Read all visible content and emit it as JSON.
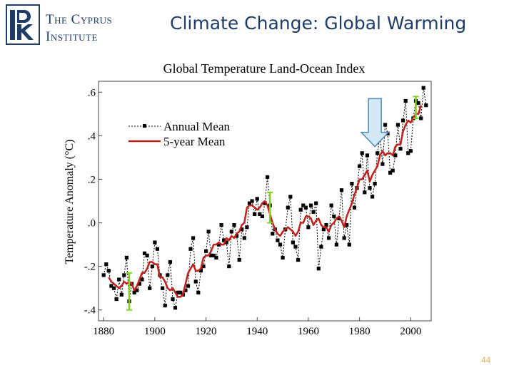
{
  "header": {
    "logo_line1": "The Cyprus",
    "logo_line2": "Institute",
    "slide_title": "Climate Change: Global Warming"
  },
  "page_number": "44",
  "colors": {
    "title": "#1f3c66",
    "logo": "#1f3c66",
    "annual": "#000000",
    "five_year": "#c0201c",
    "error_bar": "#7ed321",
    "arrow_fill": "#d4e9f6",
    "arrow_stroke": "#4f86b6",
    "page_number": "#e4b15c"
  },
  "icons": [
    "logo-emblem-icon",
    "down-arrow-icon",
    "error-bar-icon"
  ],
  "chart_data": {
    "type": "line",
    "title": "Global Temperature Land-Ocean Index",
    "ylabel": "Temperature Anomaly (°C)",
    "xlabel": "",
    "xlim": [
      1878,
      2008
    ],
    "ylim": [
      -0.45,
      0.65
    ],
    "xticks": [
      "1880",
      "1900",
      "1920",
      "1940",
      "1960",
      "1980",
      "2000"
    ],
    "xtick_values": [
      1880,
      1900,
      1920,
      1940,
      1960,
      1980,
      2000
    ],
    "yticks": [
      ".6",
      ".4",
      ".2",
      ".0",
      "-.2",
      "-.4"
    ],
    "ytick_values": [
      0.6,
      0.4,
      0.2,
      0.0,
      -0.2,
      -0.4
    ],
    "grid": false,
    "legend_position": "top-left",
    "series": [
      {
        "name": "Annual Mean",
        "style": "dotted line with square markers",
        "x": [
          1880,
          1881,
          1882,
          1883,
          1884,
          1885,
          1886,
          1887,
          1888,
          1889,
          1890,
          1891,
          1892,
          1893,
          1894,
          1895,
          1896,
          1897,
          1898,
          1899,
          1900,
          1901,
          1902,
          1903,
          1904,
          1905,
          1906,
          1907,
          1908,
          1909,
          1910,
          1911,
          1912,
          1913,
          1914,
          1915,
          1916,
          1917,
          1918,
          1919,
          1920,
          1921,
          1922,
          1923,
          1924,
          1925,
          1926,
          1927,
          1928,
          1929,
          1930,
          1931,
          1932,
          1933,
          1934,
          1935,
          1936,
          1937,
          1938,
          1939,
          1940,
          1941,
          1942,
          1943,
          1944,
          1945,
          1946,
          1947,
          1948,
          1949,
          1950,
          1951,
          1952,
          1953,
          1954,
          1955,
          1956,
          1957,
          1958,
          1959,
          1960,
          1961,
          1962,
          1963,
          1964,
          1965,
          1966,
          1967,
          1968,
          1969,
          1970,
          1971,
          1972,
          1973,
          1974,
          1975,
          1976,
          1977,
          1978,
          1979,
          1980,
          1981,
          1982,
          1983,
          1984,
          1985,
          1986,
          1987,
          1988,
          1989,
          1990,
          1991,
          1992,
          1993,
          1994,
          1995,
          1996,
          1997,
          1998,
          1999,
          2000,
          2001,
          2002,
          2003,
          2004,
          2005,
          2006
        ],
        "values": [
          -0.24,
          -0.19,
          -0.22,
          -0.29,
          -0.3,
          -0.35,
          -0.26,
          -0.33,
          -0.24,
          -0.16,
          -0.36,
          -0.28,
          -0.32,
          -0.31,
          -0.28,
          -0.26,
          -0.14,
          -0.15,
          -0.3,
          -0.2,
          -0.09,
          -0.12,
          -0.24,
          -0.3,
          -0.38,
          -0.24,
          -0.18,
          -0.35,
          -0.39,
          -0.32,
          -0.32,
          -0.33,
          -0.31,
          -0.29,
          -0.12,
          -0.07,
          -0.27,
          -0.32,
          -0.22,
          -0.2,
          -0.13,
          -0.04,
          -0.15,
          -0.15,
          -0.16,
          -0.1,
          -0.01,
          -0.08,
          -0.09,
          -0.2,
          -0.04,
          -0.01,
          -0.06,
          -0.17,
          -0.03,
          -0.07,
          -0.02,
          0.09,
          0.1,
          0.04,
          0.11,
          0.04,
          0.03,
          0.09,
          0.21,
          0.08,
          -0.05,
          -0.03,
          -0.08,
          -0.1,
          -0.16,
          -0.03,
          0.07,
          0.12,
          -0.09,
          -0.11,
          -0.17,
          0.06,
          0.08,
          0.07,
          -0.02,
          0.08,
          0.05,
          0.09,
          -0.21,
          -0.11,
          -0.03,
          -0.01,
          -0.07,
          0.08,
          0.03,
          -0.1,
          0.02,
          0.15,
          -0.07,
          -0.01,
          -0.1,
          0.18,
          0.07,
          0.16,
          0.26,
          0.32,
          0.14,
          0.31,
          0.16,
          0.12,
          0.18,
          0.32,
          0.4,
          0.27,
          0.45,
          0.41,
          0.23,
          0.24,
          0.31,
          0.45,
          0.34,
          0.47,
          0.56,
          0.32,
          0.33,
          0.48,
          0.56,
          0.55,
          0.48,
          0.62,
          0.54
        ]
      },
      {
        "name": "5-year Mean",
        "style": "solid red line",
        "x": [
          1882,
          1883,
          1884,
          1885,
          1886,
          1887,
          1888,
          1889,
          1890,
          1891,
          1892,
          1893,
          1894,
          1895,
          1896,
          1897,
          1898,
          1899,
          1900,
          1901,
          1902,
          1903,
          1904,
          1905,
          1906,
          1907,
          1908,
          1909,
          1910,
          1911,
          1912,
          1913,
          1914,
          1915,
          1916,
          1917,
          1918,
          1919,
          1920,
          1921,
          1922,
          1923,
          1924,
          1925,
          1926,
          1927,
          1928,
          1929,
          1930,
          1931,
          1932,
          1933,
          1934,
          1935,
          1936,
          1937,
          1938,
          1939,
          1940,
          1941,
          1942,
          1943,
          1944,
          1945,
          1946,
          1947,
          1948,
          1949,
          1950,
          1951,
          1952,
          1953,
          1954,
          1955,
          1956,
          1957,
          1958,
          1959,
          1960,
          1961,
          1962,
          1963,
          1964,
          1965,
          1966,
          1967,
          1968,
          1969,
          1970,
          1971,
          1972,
          1973,
          1974,
          1975,
          1976,
          1977,
          1978,
          1979,
          1980,
          1981,
          1982,
          1983,
          1984,
          1985,
          1986,
          1987,
          1988,
          1989,
          1990,
          1991,
          1992,
          1993,
          1994,
          1995,
          1996,
          1997,
          1998,
          1999,
          2000,
          2001,
          2002,
          2003,
          2004
        ],
        "values": [
          -0.25,
          -0.27,
          -0.28,
          -0.29,
          -0.3,
          -0.29,
          -0.27,
          -0.28,
          -0.27,
          -0.28,
          -0.31,
          -0.29,
          -0.26,
          -0.23,
          -0.23,
          -0.21,
          -0.18,
          -0.18,
          -0.19,
          -0.19,
          -0.25,
          -0.25,
          -0.27,
          -0.3,
          -0.31,
          -0.3,
          -0.32,
          -0.34,
          -0.34,
          -0.33,
          -0.28,
          -0.23,
          -0.21,
          -0.19,
          -0.22,
          -0.22,
          -0.21,
          -0.16,
          -0.15,
          -0.15,
          -0.13,
          -0.1,
          -0.1,
          -0.09,
          -0.1,
          -0.1,
          -0.07,
          -0.08,
          -0.06,
          -0.07,
          -0.05,
          -0.04,
          -0.01,
          0.0,
          0.07,
          0.08,
          0.08,
          0.07,
          0.06,
          0.07,
          0.09,
          0.1,
          0.08,
          0.04,
          0.0,
          -0.03,
          -0.05,
          -0.06,
          -0.04,
          -0.03,
          -0.02,
          -0.03,
          -0.04,
          -0.06,
          -0.04,
          0.0,
          0.0,
          0.03,
          0.03,
          0.02,
          -0.01,
          0.01,
          0.02,
          -0.01,
          -0.02,
          -0.02,
          -0.04,
          -0.01,
          0.0,
          0.02,
          0.03,
          0.01,
          -0.02,
          0.03,
          0.06,
          0.09,
          0.13,
          0.16,
          0.2,
          0.2,
          0.22,
          0.24,
          0.19,
          0.22,
          0.24,
          0.26,
          0.31,
          0.33,
          0.31,
          0.32,
          0.32,
          0.31,
          0.35,
          0.36,
          0.36,
          0.42,
          0.45,
          0.47,
          0.46,
          0.48,
          0.5,
          0.5,
          0.54
        ]
      }
    ],
    "annotations": {
      "error_bars": [
        {
          "x": 1890,
          "low": -0.4,
          "high": -0.23
        },
        {
          "x": 1945,
          "low": 0.0,
          "high": 0.14
        },
        {
          "x": 2002,
          "low": 0.48,
          "high": 0.58
        }
      ],
      "arrow": {
        "x": 1986,
        "y_top": 0.57,
        "y_tip": 0.35,
        "direction": "down"
      }
    }
  }
}
